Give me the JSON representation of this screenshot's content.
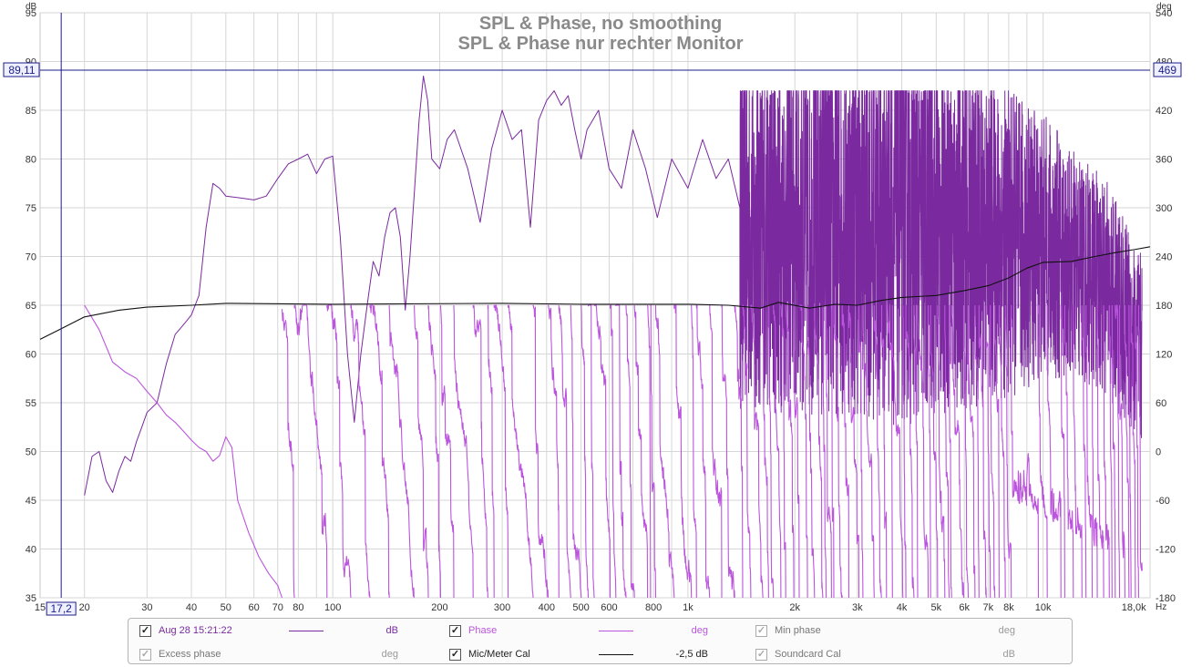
{
  "chart_data": {
    "type": "line",
    "title": "SPL & Phase, no smoothing",
    "subtitle": "SPL & Phase nur rechter Monitor",
    "x_scale": "log",
    "xlim": [
      15,
      20000
    ],
    "x_unit": "Hz",
    "x_ticks": [
      {
        "v": 15,
        "label": "15"
      },
      {
        "v": 20,
        "label": "20"
      },
      {
        "v": 30,
        "label": "30"
      },
      {
        "v": 40,
        "label": "40"
      },
      {
        "v": 50,
        "label": "50"
      },
      {
        "v": 60,
        "label": "60"
      },
      {
        "v": 70,
        "label": "70"
      },
      {
        "v": 80,
        "label": "80"
      },
      {
        "v": 100,
        "label": "100"
      },
      {
        "v": 200,
        "label": "200"
      },
      {
        "v": 300,
        "label": "300"
      },
      {
        "v": 400,
        "label": "400"
      },
      {
        "v": 500,
        "label": "500"
      },
      {
        "v": 600,
        "label": "600"
      },
      {
        "v": 800,
        "label": "800"
      },
      {
        "v": 1000,
        "label": "1k"
      },
      {
        "v": 2000,
        "label": "2k"
      },
      {
        "v": 3000,
        "label": "3k"
      },
      {
        "v": 4000,
        "label": "4k"
      },
      {
        "v": 5000,
        "label": "5k"
      },
      {
        "v": 6000,
        "label": "6k"
      },
      {
        "v": 7000,
        "label": "7k"
      },
      {
        "v": 8000,
        "label": "8k"
      },
      {
        "v": 10000,
        "label": "10k"
      },
      {
        "v": 18000,
        "label": "18,0k"
      }
    ],
    "y_left": {
      "unit": "dB",
      "min": 35,
      "max": 95,
      "ticks": [
        35,
        40,
        45,
        50,
        55,
        60,
        65,
        70,
        75,
        80,
        85,
        90,
        95
      ]
    },
    "y_right": {
      "unit": "deg",
      "min": -180,
      "max": 540,
      "ticks": [
        -180,
        -120,
        -60,
        0,
        60,
        120,
        180,
        240,
        300,
        360,
        420,
        480,
        540
      ]
    },
    "cursor": {
      "x_label": "17,2",
      "x": 17.2,
      "y_left_label": "89,11",
      "y_left": 89.11,
      "y_right_label": "469",
      "y_right": 469
    },
    "grid": true,
    "series": [
      {
        "name": "Aug 28 15:21:22",
        "unit": "dB",
        "color": "#7a2a9e",
        "points": [
          [
            20,
            45.5
          ],
          [
            21,
            49.5
          ],
          [
            22,
            50
          ],
          [
            23,
            47
          ],
          [
            24,
            45.8
          ],
          [
            25,
            48
          ],
          [
            26,
            49.5
          ],
          [
            27,
            49
          ],
          [
            28,
            51
          ],
          [
            29,
            52.5
          ],
          [
            30,
            54
          ],
          [
            32,
            55
          ],
          [
            34,
            59
          ],
          [
            36,
            62
          ],
          [
            38,
            63
          ],
          [
            40,
            64
          ],
          [
            42,
            66
          ],
          [
            44,
            73
          ],
          [
            46,
            77.5
          ],
          [
            48,
            77
          ],
          [
            50,
            76.2
          ],
          [
            55,
            76
          ],
          [
            60,
            75.8
          ],
          [
            65,
            76.2
          ],
          [
            70,
            78
          ],
          [
            75,
            79.5
          ],
          [
            80,
            80
          ],
          [
            85,
            80.5
          ],
          [
            90,
            78.5
          ],
          [
            95,
            80
          ],
          [
            100,
            80.3
          ],
          [
            105,
            72
          ],
          [
            110,
            60
          ],
          [
            115,
            53
          ],
          [
            120,
            60
          ],
          [
            125,
            65
          ],
          [
            130,
            69.5
          ],
          [
            135,
            68
          ],
          [
            140,
            72
          ],
          [
            145,
            74.5
          ],
          [
            150,
            75
          ],
          [
            155,
            72
          ],
          [
            160,
            64.5
          ],
          [
            165,
            70
          ],
          [
            170,
            77
          ],
          [
            175,
            84
          ],
          [
            180,
            88.5
          ],
          [
            185,
            86
          ],
          [
            190,
            80
          ],
          [
            200,
            79
          ],
          [
            210,
            82
          ],
          [
            220,
            83
          ],
          [
            240,
            79
          ],
          [
            260,
            73.5
          ],
          [
            280,
            81
          ],
          [
            300,
            85
          ],
          [
            320,
            82
          ],
          [
            340,
            83
          ],
          [
            360,
            73
          ],
          [
            380,
            84
          ],
          [
            400,
            86
          ],
          [
            420,
            87
          ],
          [
            440,
            85.5
          ],
          [
            460,
            86.5
          ],
          [
            480,
            83
          ],
          [
            500,
            80
          ],
          [
            520,
            83
          ],
          [
            560,
            85
          ],
          [
            600,
            79
          ],
          [
            650,
            77
          ],
          [
            700,
            83
          ],
          [
            760,
            79
          ],
          [
            820,
            74
          ],
          [
            900,
            80
          ],
          [
            1000,
            77
          ],
          [
            1100,
            82
          ],
          [
            1200,
            78
          ],
          [
            1300,
            80
          ],
          [
            1400,
            75
          ]
        ],
        "noise": {
          "from": 1400,
          "to": 19000,
          "center_db": [
            [
              1400,
              72
            ],
            [
              3000,
              73
            ],
            [
              6000,
              72
            ],
            [
              10000,
              71
            ],
            [
              15000,
              67
            ],
            [
              19000,
              60
            ]
          ],
          "amplitude_db": [
            [
              1400,
              18
            ],
            [
              4000,
              20
            ],
            [
              8000,
              16
            ],
            [
              12000,
              12
            ],
            [
              19000,
              10
            ]
          ]
        }
      },
      {
        "name": "Phase",
        "unit": "deg",
        "color": "#bb55dd",
        "points": [
          [
            20,
            180
          ],
          [
            22,
            150
          ],
          [
            24,
            110
          ],
          [
            26,
            98
          ],
          [
            28,
            90
          ],
          [
            30,
            74
          ],
          [
            32,
            60
          ],
          [
            34,
            45
          ],
          [
            36,
            36
          ],
          [
            38,
            25
          ],
          [
            40,
            14
          ],
          [
            42,
            5
          ],
          [
            44,
            0
          ],
          [
            46,
            -12
          ],
          [
            48,
            -5
          ],
          [
            50,
            18
          ],
          [
            52,
            5
          ],
          [
            54,
            -60
          ],
          [
            58,
            -100
          ],
          [
            62,
            -130
          ],
          [
            66,
            -150
          ],
          [
            70,
            -165
          ],
          [
            72,
            -180
          ]
        ],
        "noise": {
          "from": 72,
          "to": 19000,
          "wraps": true
        }
      },
      {
        "name": "Min phase",
        "unit": "deg",
        "color": "#aaaaaa",
        "visible": false
      },
      {
        "name": "Excess phase",
        "unit": "deg",
        "color": "#aaaaaa",
        "visible": false
      },
      {
        "name": "Mic/Meter Cal",
        "unit": "dB",
        "color": "#111111",
        "offset_label": "-2,5 dB",
        "points": [
          [
            15,
            61.5
          ],
          [
            17,
            62.5
          ],
          [
            20,
            63.8
          ],
          [
            25,
            64.5
          ],
          [
            30,
            64.8
          ],
          [
            40,
            65
          ],
          [
            50,
            65.2
          ],
          [
            100,
            65.1
          ],
          [
            300,
            65.2
          ],
          [
            500,
            65.1
          ],
          [
            800,
            65.1
          ],
          [
            1000,
            65.1
          ],
          [
            1300,
            65
          ],
          [
            1600,
            64.7
          ],
          [
            1800,
            65.3
          ],
          [
            2200,
            64.7
          ],
          [
            2600,
            65.1
          ],
          [
            3000,
            65
          ],
          [
            3500,
            65.5
          ],
          [
            4000,
            65.8
          ],
          [
            5000,
            66
          ],
          [
            6000,
            66.5
          ],
          [
            7000,
            67
          ],
          [
            8000,
            67.8
          ],
          [
            9000,
            68.8
          ],
          [
            10000,
            69.4
          ],
          [
            12000,
            69.5
          ],
          [
            14000,
            70
          ],
          [
            16000,
            70.4
          ],
          [
            18000,
            70.7
          ],
          [
            20000,
            71
          ]
        ]
      },
      {
        "name": "Soundcard Cal",
        "unit": "dB",
        "color": "#aaaaaa",
        "visible": false
      }
    ]
  },
  "legend": {
    "items": [
      {
        "name": "Aug 28 15:21:22",
        "checked": true,
        "dim": false,
        "unit": "dB",
        "color": "#7a2a9e",
        "value": ""
      },
      {
        "name": "Phase",
        "checked": true,
        "dim": false,
        "unit": "deg",
        "color": "#bb55dd",
        "value": ""
      },
      {
        "name": "Min phase",
        "checked": true,
        "dim": true,
        "unit": "deg",
        "color": "",
        "value": ""
      },
      {
        "name": "Excess phase",
        "checked": true,
        "dim": true,
        "unit": "deg",
        "color": "",
        "value": ""
      },
      {
        "name": "Mic/Meter Cal",
        "checked": true,
        "dim": false,
        "unit": "",
        "color": "#111111",
        "value": "-2,5 dB"
      },
      {
        "name": "Soundcard Cal",
        "checked": true,
        "dim": true,
        "unit": "dB",
        "color": "",
        "value": ""
      }
    ]
  }
}
